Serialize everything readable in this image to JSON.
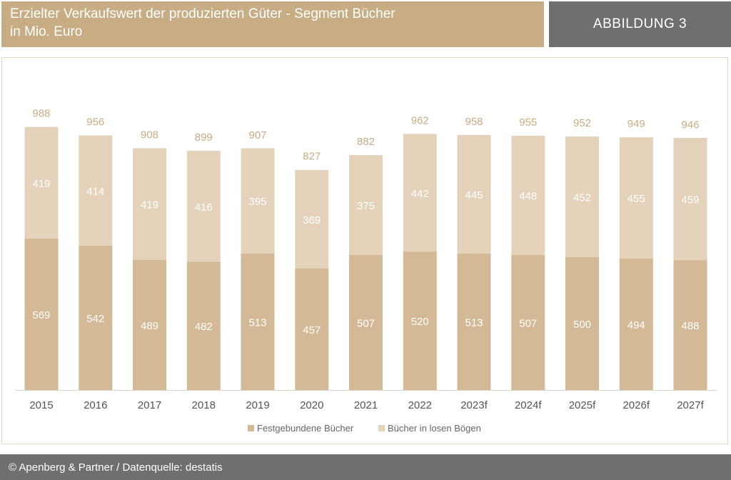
{
  "header": {
    "title": "Erzielter Verkaufswert der produzierten Güter - Segment Bücher",
    "subtitle": "in Mio. Euro",
    "figure_label": "ABBILDUNG 3"
  },
  "footer": {
    "source": "© Apenberg & Partner / Datenquelle: destatis"
  },
  "colors": {
    "header_bg": "#c8ac84",
    "figure_bg": "#6f6f71",
    "series_bottom": "#d4b996",
    "series_top": "#e4d2bb",
    "total_label": "#c8ac84"
  },
  "chart_data": {
    "type": "bar",
    "stacked": true,
    "categories": [
      "2015",
      "2016",
      "2017",
      "2018",
      "2019",
      "2020",
      "2021",
      "2022",
      "2023f",
      "2024f",
      "2025f",
      "2026f",
      "2027f"
    ],
    "series": [
      {
        "name": "Festgebundene Bücher",
        "values": [
          569,
          542,
          489,
          482,
          513,
          457,
          507,
          520,
          513,
          507,
          500,
          494,
          488
        ]
      },
      {
        "name": "Bücher in losen Bögen",
        "values": [
          419,
          414,
          419,
          416,
          395,
          369,
          375,
          442,
          445,
          448,
          452,
          455,
          459
        ]
      }
    ],
    "totals": [
      988,
      956,
      908,
      899,
      907,
      827,
      882,
      962,
      958,
      955,
      952,
      949,
      946
    ],
    "ylim": [
      0,
      1000
    ],
    "grid": false,
    "legend": "bottom-center"
  }
}
